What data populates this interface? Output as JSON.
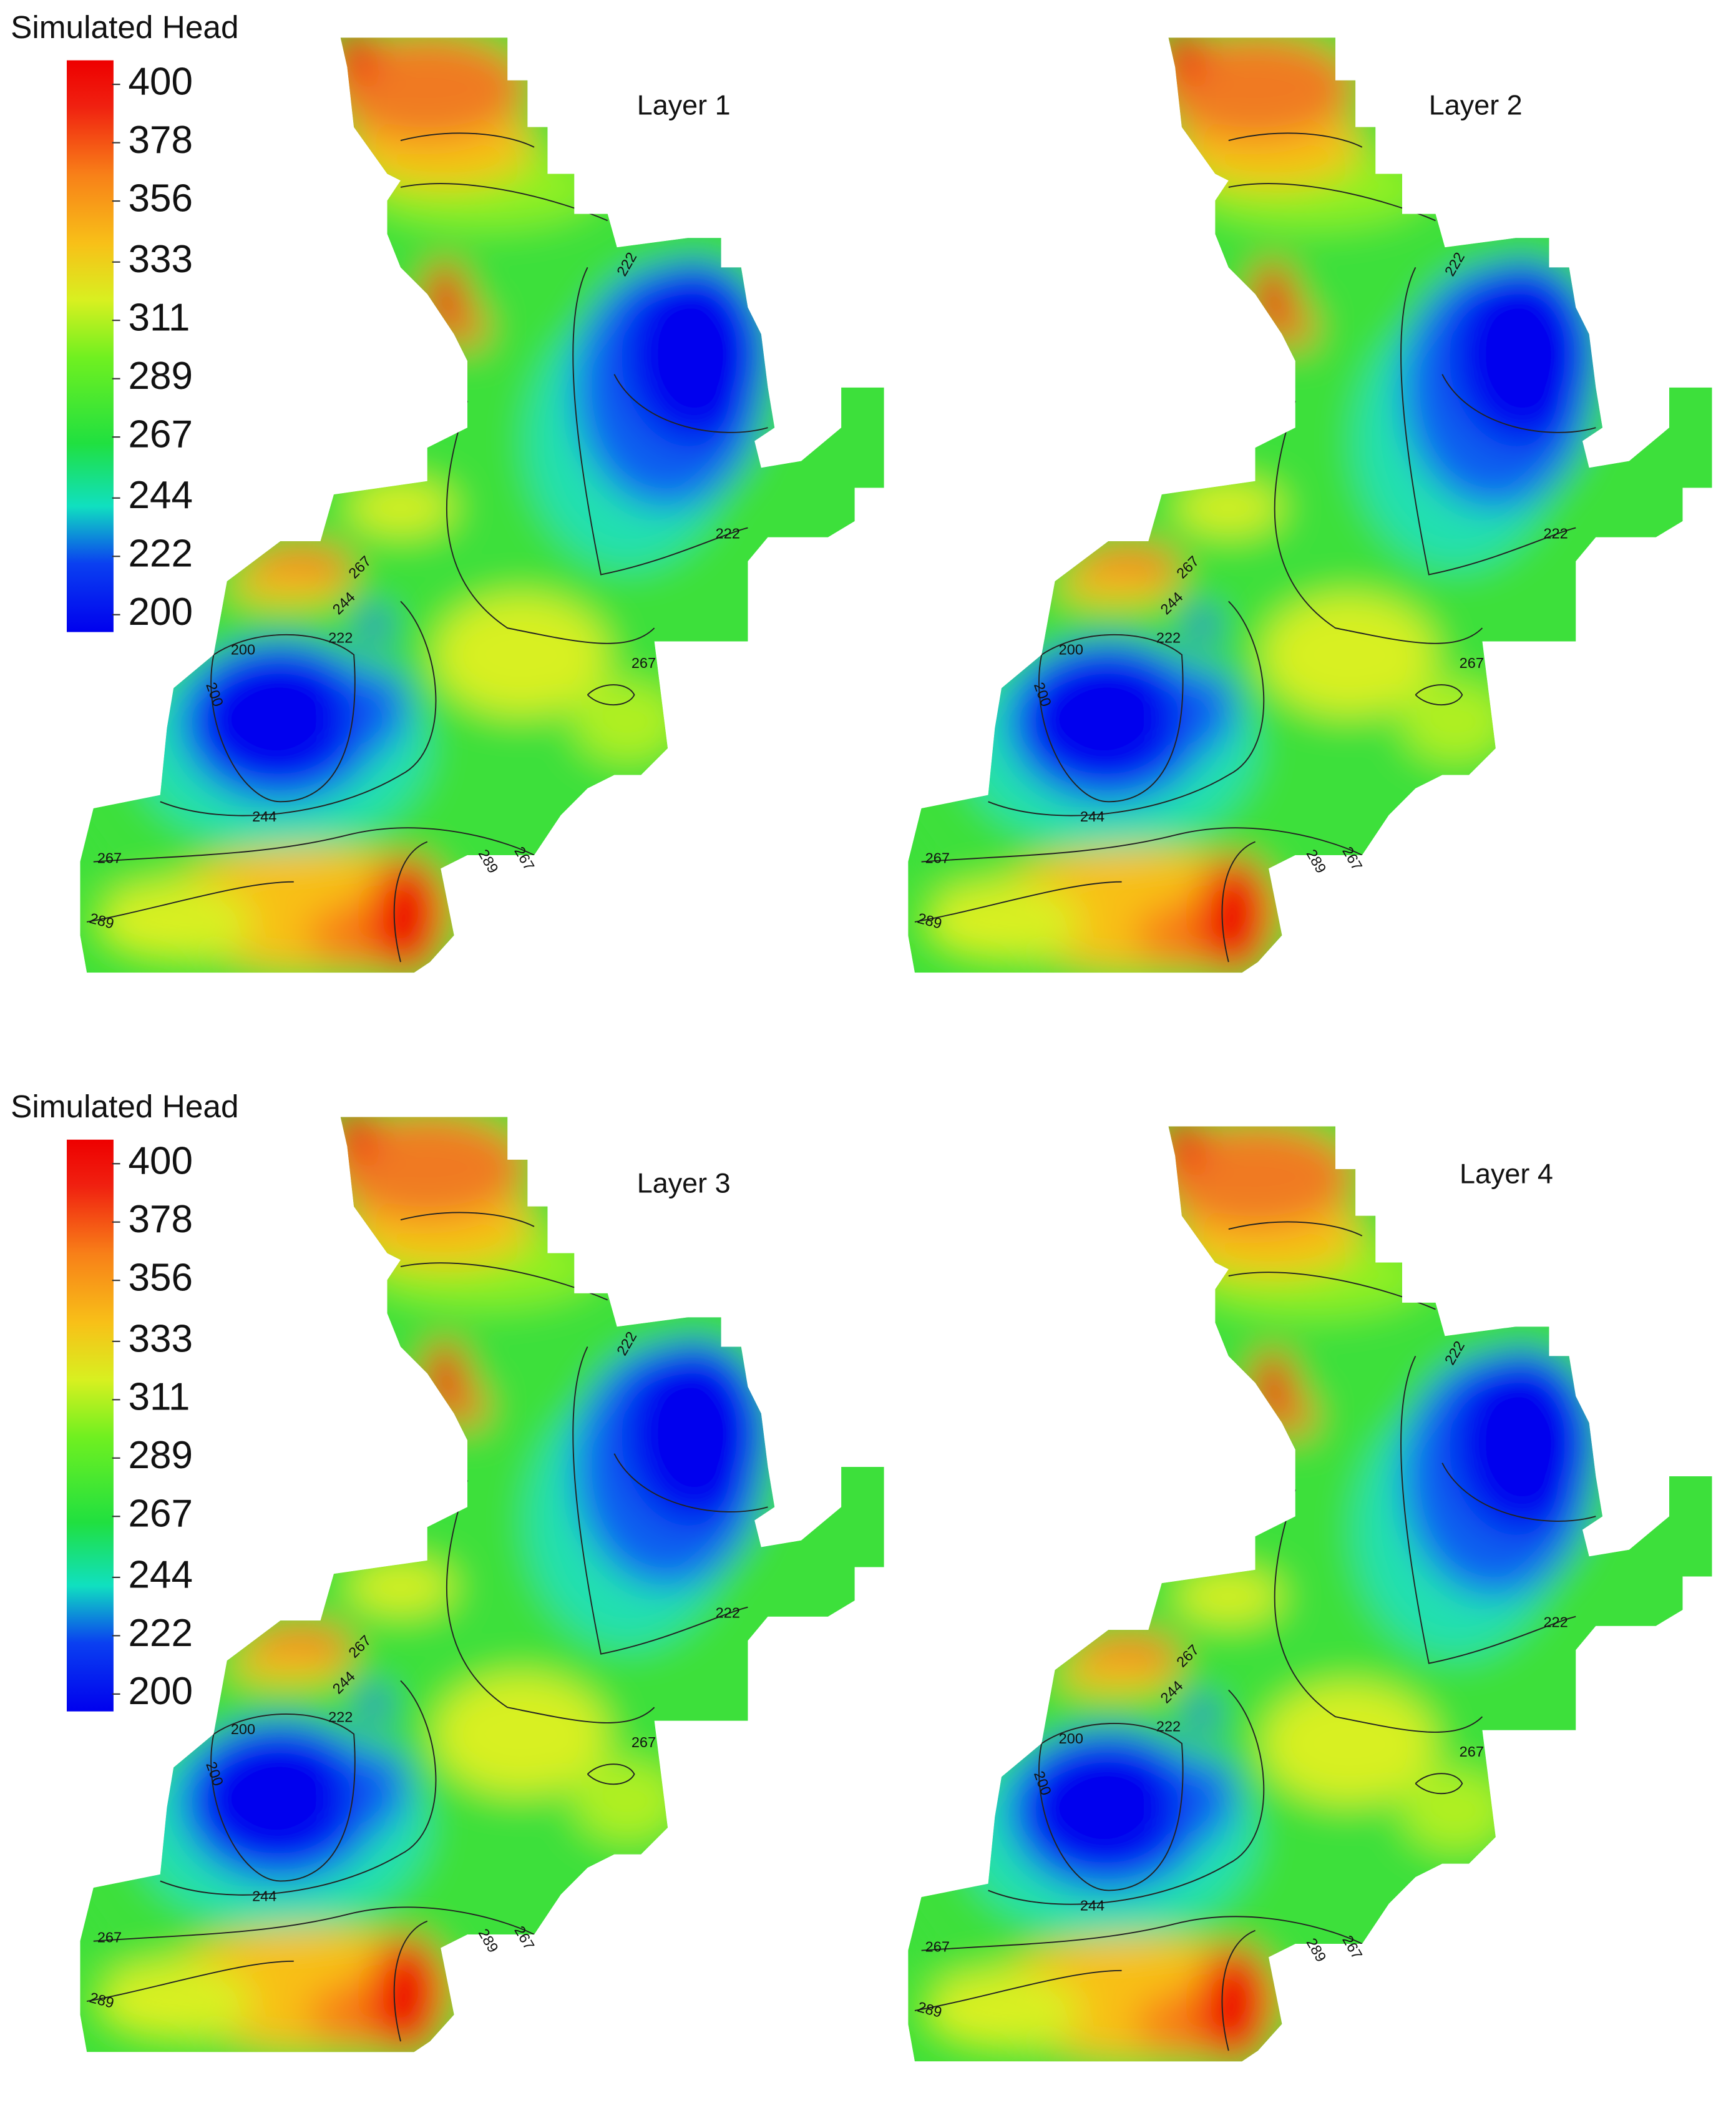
{
  "legends": [
    {
      "title": "Simulated Head",
      "ticks": [
        400,
        378,
        356,
        333,
        311,
        289,
        267,
        244,
        222,
        200
      ]
    },
    {
      "title": "Simulated Head",
      "ticks": [
        400,
        378,
        356,
        333,
        311,
        289,
        267,
        244,
        222,
        200
      ]
    }
  ],
  "panels": [
    {
      "title": "Layer 1",
      "contour_labels": [
        222,
        222,
        267,
        244,
        222,
        200,
        200,
        267,
        244,
        267,
        289,
        267,
        289
      ]
    },
    {
      "title": "Layer 2",
      "contour_labels": [
        222,
        222,
        267,
        244,
        222,
        200,
        200,
        267,
        244,
        267,
        289,
        267,
        289
      ]
    },
    {
      "title": "Layer 3",
      "contour_labels": [
        222,
        222,
        267,
        244,
        222,
        200,
        200,
        267,
        244,
        267,
        289,
        267,
        289
      ]
    },
    {
      "title": "Layer 4",
      "contour_labels": [
        222,
        222,
        267,
        244,
        222,
        200,
        200,
        267,
        244,
        267,
        289,
        267,
        289
      ]
    }
  ]
}
